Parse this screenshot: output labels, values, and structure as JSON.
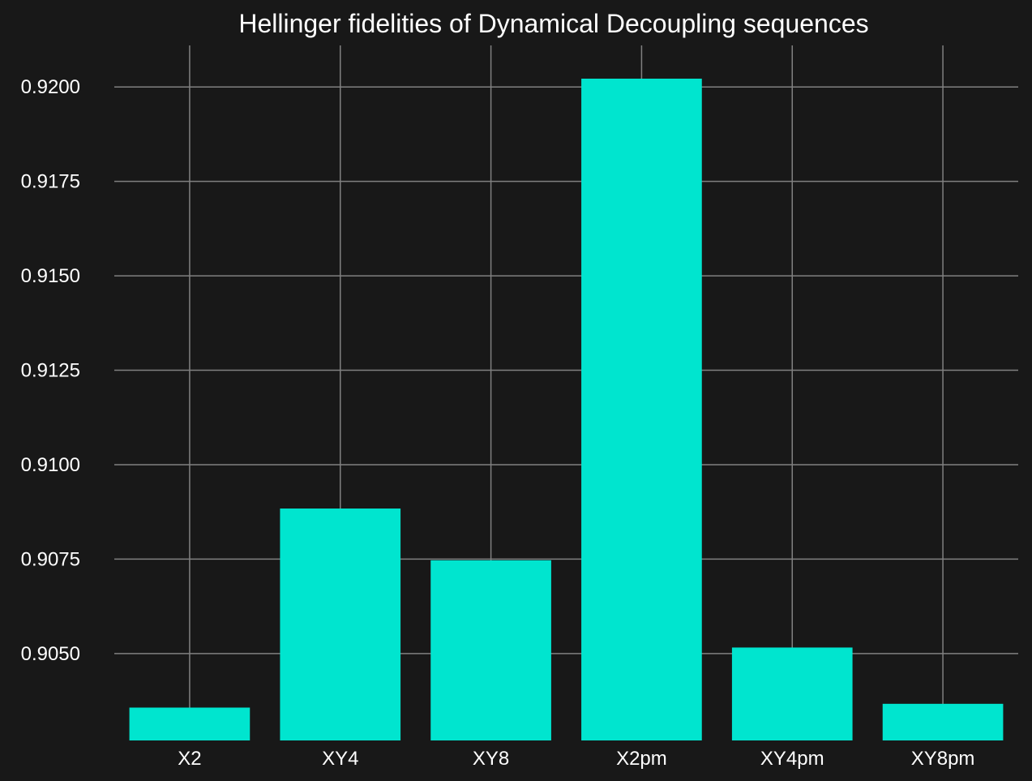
{
  "chart_data": {
    "type": "bar",
    "title": "Hellinger fidelities of Dynamical Decoupling sequences",
    "xlabel": "",
    "ylabel": "",
    "categories": [
      "X2",
      "XY4",
      "XY8",
      "X2pm",
      "XY4pm",
      "XY8pm"
    ],
    "values": [
      0.90357,
      0.90884,
      0.90747,
      0.92022,
      0.90516,
      0.90367
    ],
    "ylim": [
      0.9027,
      0.9211
    ],
    "yticks": [
      0.905,
      0.9075,
      0.91,
      0.9125,
      0.915,
      0.9175,
      0.92
    ],
    "ytick_labels": [
      "0.9050",
      "0.9075",
      "0.9100",
      "0.9125",
      "0.9150",
      "0.9175",
      "0.9200"
    ],
    "grid": true,
    "bar_color": "#00e5cf",
    "background": "#181818",
    "grid_color": "#808080",
    "text_color": "#ffffff"
  }
}
